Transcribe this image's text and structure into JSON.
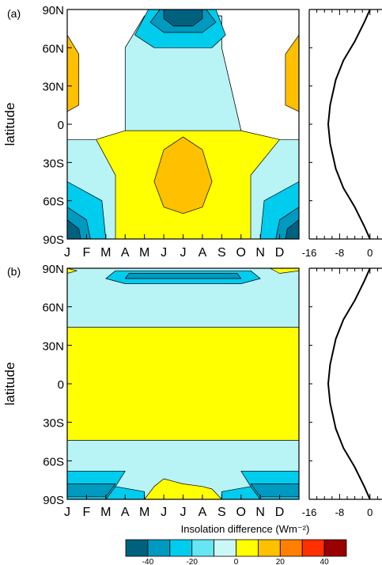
{
  "chart_data": [
    {
      "type": "heatmap",
      "panel_label": "(a)",
      "ylabel": "latitude",
      "months": [
        "J",
        "F",
        "M",
        "A",
        "M",
        "J",
        "J",
        "A",
        "S",
        "O",
        "N",
        "D"
      ],
      "lat_ticks": [
        "90N",
        "60N",
        "30N",
        "0",
        "30S",
        "60S",
        "90S"
      ],
      "lat_values": [
        90,
        60,
        30,
        0,
        -30,
        -60,
        -90
      ],
      "regions": [
        {
          "level": 0,
          "poly": [
            [
              0,
              -12
            ],
            [
              0,
              -90
            ],
            [
              12,
              -90
            ],
            [
              12,
              -12
            ],
            [
              11,
              -12
            ],
            [
              9,
              -5
            ],
            [
              8,
              60
            ],
            [
              8,
              85
            ],
            [
              4,
              85
            ],
            [
              3,
              60
            ],
            [
              3,
              -5
            ],
            [
              1.5,
              -12
            ]
          ]
        },
        {
          "level": -10,
          "poly": [
            [
              3,
              -5
            ],
            [
              3,
              60
            ],
            [
              4,
              85
            ],
            [
              8,
              85
            ],
            [
              8,
              60
            ],
            [
              9,
              -5
            ]
          ]
        },
        {
          "level": -20,
          "poly": [
            [
              3.5,
              70
            ],
            [
              4.2,
              90
            ],
            [
              7.7,
              90
            ],
            [
              8.2,
              70
            ],
            [
              7.5,
              60
            ],
            [
              4.5,
              60
            ]
          ]
        },
        {
          "level": -30,
          "poly": [
            [
              4.3,
              80
            ],
            [
              4.8,
              90
            ],
            [
              7.2,
              90
            ],
            [
              7.7,
              80
            ],
            [
              7,
              72
            ],
            [
              5,
              72
            ]
          ]
        },
        {
          "level": -40,
          "poly": [
            [
              5,
              90
            ],
            [
              7,
              90
            ],
            [
              7,
              83
            ],
            [
              6.5,
              77
            ],
            [
              5.5,
              77
            ],
            [
              5,
              83
            ]
          ]
        },
        {
          "level": 10,
          "poly": [
            [
              0,
              70
            ],
            [
              0.6,
              55
            ],
            [
              0.6,
              15
            ],
            [
              0,
              10
            ]
          ]
        },
        {
          "level": 10,
          "poly": [
            [
              12,
              70
            ],
            [
              11.3,
              55
            ],
            [
              11.3,
              15
            ],
            [
              12,
              10
            ]
          ]
        },
        {
          "level": 10,
          "poly": [
            [
              4.5,
              -45
            ],
            [
              5,
              -20
            ],
            [
              6,
              -10
            ],
            [
              7,
              -20
            ],
            [
              7.5,
              -45
            ],
            [
              7,
              -65
            ],
            [
              6,
              -70
            ],
            [
              5,
              -65
            ]
          ]
        },
        {
          "level": -10,
          "poly": [
            [
              0,
              -12
            ],
            [
              1.5,
              -12
            ],
            [
              2.5,
              -40
            ],
            [
              2.5,
              -90
            ],
            [
              0,
              -90
            ]
          ]
        },
        {
          "level": -10,
          "poly": [
            [
              12,
              -12
            ],
            [
              11,
              -12
            ],
            [
              9.5,
              -40
            ],
            [
              9.5,
              -90
            ],
            [
              12,
              -90
            ]
          ]
        },
        {
          "level": -20,
          "poly": [
            [
              0,
              -45
            ],
            [
              1.8,
              -60
            ],
            [
              2,
              -90
            ],
            [
              0,
              -90
            ]
          ]
        },
        {
          "level": -20,
          "poly": [
            [
              12,
              -45
            ],
            [
              10.2,
              -60
            ],
            [
              10,
              -90
            ],
            [
              12,
              -90
            ]
          ]
        },
        {
          "level": -30,
          "poly": [
            [
              0,
              -65
            ],
            [
              1,
              -75
            ],
            [
              1.2,
              -90
            ],
            [
              0,
              -90
            ]
          ]
        },
        {
          "level": -30,
          "poly": [
            [
              12,
              -65
            ],
            [
              11,
              -75
            ],
            [
              10.8,
              -90
            ],
            [
              12,
              -90
            ]
          ]
        },
        {
          "level": -40,
          "poly": [
            [
              0,
              -75
            ],
            [
              0.6,
              -82
            ],
            [
              0.7,
              -90
            ],
            [
              0,
              -90
            ]
          ]
        },
        {
          "level": -40,
          "poly": [
            [
              12,
              -75
            ],
            [
              11.4,
              -82
            ],
            [
              11.3,
              -90
            ],
            [
              12,
              -90
            ]
          ]
        }
      ],
      "side_profile": {
        "xticks": [
          "-16",
          "-8",
          "0"
        ],
        "xlim": [
          -16,
          4
        ],
        "points": [
          [
            0,
            90
          ],
          [
            -1.5,
            80
          ],
          [
            -4,
            65
          ],
          [
            -7,
            50
          ],
          [
            -9,
            35
          ],
          [
            -10.5,
            15
          ],
          [
            -11,
            0
          ],
          [
            -10.5,
            -15
          ],
          [
            -9,
            -35
          ],
          [
            -7,
            -50
          ],
          [
            -4,
            -65
          ],
          [
            -1.5,
            -80
          ],
          [
            0,
            -90
          ]
        ]
      }
    },
    {
      "type": "heatmap",
      "panel_label": "(b)",
      "ylabel": "latitude",
      "months": [
        "J",
        "F",
        "M",
        "A",
        "M",
        "J",
        "J",
        "A",
        "S",
        "O",
        "N",
        "D"
      ],
      "lat_ticks": [
        "90N",
        "60N",
        "30N",
        "0",
        "30S",
        "60S",
        "90S"
      ],
      "lat_values": [
        90,
        60,
        30,
        0,
        -30,
        -60,
        -90
      ],
      "regions": [
        {
          "level": 0,
          "poly": [
            [
              0,
              -90
            ],
            [
              12,
              -90
            ],
            [
              12,
              90
            ],
            [
              0,
              90
            ]
          ]
        },
        {
          "level": -10,
          "poly": [
            [
              0,
              44
            ],
            [
              12,
              44
            ],
            [
              12,
              88
            ],
            [
              11,
              86
            ],
            [
              10.5,
              90
            ],
            [
              0,
              90
            ]
          ]
        },
        {
          "level": 0,
          "poly": [
            [
              0,
              90
            ],
            [
              0.5,
              88
            ],
            [
              0,
              86
            ]
          ]
        },
        {
          "level": -20,
          "poly": [
            [
              2,
              82
            ],
            [
              2.5,
              88
            ],
            [
              9.5,
              88
            ],
            [
              10,
              82
            ],
            [
              9,
              78
            ],
            [
              3,
              78
            ]
          ]
        },
        {
          "level": -30,
          "poly": [
            [
              3,
              82
            ],
            [
              3.2,
              86
            ],
            [
              8.8,
              86
            ],
            [
              9,
              82
            ]
          ]
        },
        {
          "level": -10,
          "poly": [
            [
              0,
              -44
            ],
            [
              12,
              -44
            ],
            [
              12,
              -90
            ],
            [
              0,
              -90
            ]
          ]
        },
        {
          "level": -20,
          "poly": [
            [
              0,
              -68
            ],
            [
              3,
              -68
            ],
            [
              2.5,
              -80
            ],
            [
              2,
              -90
            ],
            [
              0,
              -90
            ]
          ]
        },
        {
          "level": -20,
          "poly": [
            [
              12,
              -68
            ],
            [
              9,
              -68
            ],
            [
              9.5,
              -80
            ],
            [
              10,
              -90
            ],
            [
              12,
              -90
            ]
          ]
        },
        {
          "level": -20,
          "poly": [
            [
              2,
              -90
            ],
            [
              2.5,
              -80
            ],
            [
              4,
              -84
            ],
            [
              4,
              -90
            ]
          ]
        },
        {
          "level": -20,
          "poly": [
            [
              10,
              -90
            ],
            [
              9.5,
              -80
            ],
            [
              8,
              -84
            ],
            [
              8,
              -90
            ]
          ]
        },
        {
          "level": -30,
          "poly": [
            [
              0,
              -78
            ],
            [
              2.5,
              -78
            ],
            [
              2,
              -88
            ],
            [
              0,
              -88
            ]
          ]
        },
        {
          "level": -30,
          "poly": [
            [
              12,
              -78
            ],
            [
              9.5,
              -78
            ],
            [
              10,
              -88
            ],
            [
              12,
              -88
            ]
          ]
        },
        {
          "level": 0,
          "poly": [
            [
              4,
              -90
            ],
            [
              4.5,
              -80
            ],
            [
              5,
              -74
            ],
            [
              5.5,
              -76
            ],
            [
              6,
              -78
            ],
            [
              7,
              -80
            ],
            [
              7.5,
              -82
            ],
            [
              8,
              -90
            ]
          ]
        }
      ],
      "side_profile": {
        "xticks": [
          "-16",
          "-8",
          "0"
        ],
        "xlim": [
          -16,
          4
        ],
        "points": [
          [
            0,
            90
          ],
          [
            -1.5,
            80
          ],
          [
            -4,
            65
          ],
          [
            -7,
            50
          ],
          [
            -9,
            35
          ],
          [
            -10.5,
            15
          ],
          [
            -11,
            0
          ],
          [
            -10.5,
            -15
          ],
          [
            -9,
            -35
          ],
          [
            -7,
            -50
          ],
          [
            -4,
            -65
          ],
          [
            -1.5,
            -80
          ],
          [
            0,
            -90
          ]
        ]
      }
    }
  ],
  "colorbar": {
    "label": "Insolation difference (Wm⁻²)",
    "levels": [
      -50,
      -40,
      -30,
      -20,
      -10,
      0,
      10,
      20,
      30,
      40,
      50
    ],
    "tick_labels": [
      "-40",
      "-20",
      "0",
      "20",
      "40"
    ],
    "tick_values": [
      -40,
      -20,
      0,
      20,
      40
    ],
    "colors": [
      "#00617f",
      "#0099bf",
      "#00ccee",
      "#66e6f2",
      "#ccf7f7",
      "#ffff00",
      "#ffc000",
      "#ff8000",
      "#ff3000",
      "#990000"
    ]
  },
  "palette": {
    "-50": "#00617f",
    "-40": "#00617f",
    "-30": "#0099bf",
    "-20": "#00ccee",
    "-10": "#b8f3f6",
    "0": "#ffff00",
    "10": "#ffc000",
    "20": "#ff8000"
  }
}
